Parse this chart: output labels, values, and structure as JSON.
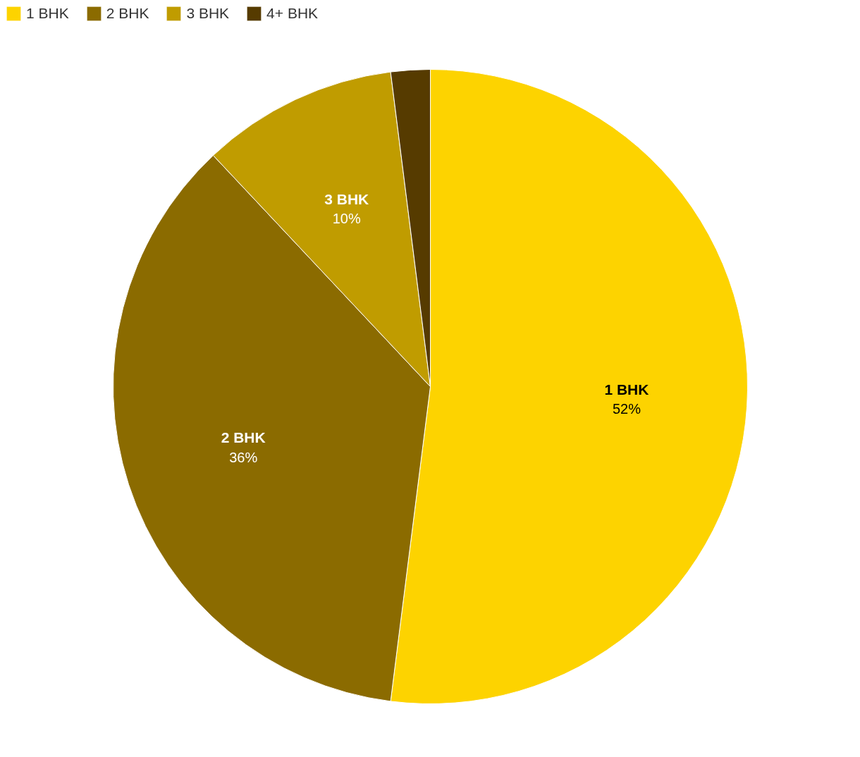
{
  "chart_data": {
    "type": "pie",
    "categories": [
      "1 BHK",
      "2 BHK",
      "3 BHK",
      "4+ BHK"
    ],
    "values": [
      52,
      36,
      10,
      2
    ],
    "colors": [
      "#fdd300",
      "#8b6b00",
      "#c09c00",
      "#563b00"
    ],
    "value_labels": [
      "52%",
      "36%",
      "10%",
      null
    ],
    "legend": "top left"
  }
}
